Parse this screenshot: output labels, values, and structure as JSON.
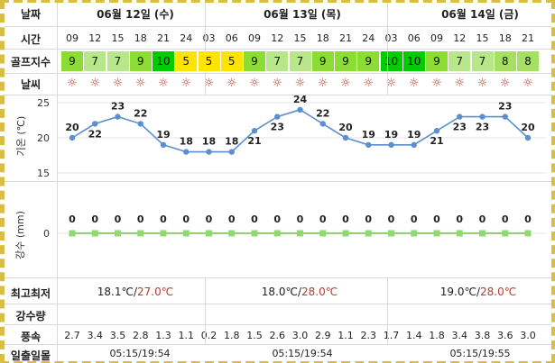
{
  "labels": {
    "date": "날짜",
    "time": "시간",
    "golf": "골프지수",
    "weather": "날씨",
    "temp_axis": "기온 (℃)",
    "rain_axis": "강수 (mm)",
    "minmax": "최고최저",
    "rain_amount": "강수량",
    "wind": "풍속",
    "sun": "일출일몰"
  },
  "days": [
    {
      "title": "06월 12일 (수)",
      "min": "18.1℃",
      "max": "27.0℃",
      "sunrise": "05:15",
      "sunset": "19:54"
    },
    {
      "title": "06월 13일 (목)",
      "min": "18.0℃",
      "max": "28.0℃",
      "sunrise": "05:15",
      "sunset": "19:54"
    },
    {
      "title": "06월 14일 (금)",
      "min": "19.0℃",
      "max": "28.0℃",
      "sunrise": "05:15",
      "sunset": "19:55"
    }
  ],
  "times": [
    "09",
    "12",
    "15",
    "18",
    "21",
    "24",
    "03",
    "06",
    "09",
    "12",
    "15",
    "18",
    "21",
    "24",
    "03",
    "06",
    "09",
    "12",
    "15",
    "18",
    "21"
  ],
  "golf": [
    9,
    7,
    7,
    9,
    10,
    5,
    5,
    5,
    9,
    7,
    7,
    9,
    9,
    9,
    10,
    10,
    9,
    7,
    7,
    8,
    8
  ],
  "weather_icon": "sun-icon",
  "temps": [
    20,
    22,
    23,
    22,
    19,
    18,
    18,
    18,
    21,
    23,
    24,
    22,
    20,
    19,
    19,
    19,
    21,
    23,
    23,
    23,
    20
  ],
  "rain": [
    0,
    0,
    0,
    0,
    0,
    0,
    0,
    0,
    0,
    0,
    0,
    0,
    0,
    0,
    0,
    0,
    0,
    0,
    0,
    0,
    0
  ],
  "wind": [
    "2.7",
    "3.4",
    "3.5",
    "2.8",
    "1.3",
    "1.1",
    "0.2",
    "1.8",
    "1.5",
    "2.6",
    "3.0",
    "2.9",
    "1.1",
    "2.3",
    "1.7",
    "1.4",
    "1.8",
    "3.4",
    "3.8",
    "3.6",
    "3.0"
  ],
  "chart_data": {
    "type": "line",
    "series": [
      {
        "values": [
          20,
          22,
          23,
          22,
          19,
          18,
          18,
          18,
          21,
          23,
          24,
          22,
          20,
          19,
          19,
          19,
          21,
          23,
          23,
          23,
          20
        ]
      }
    ],
    "rain_values": [
      0,
      0,
      0,
      0,
      0,
      0,
      0,
      0,
      0,
      0,
      0,
      0,
      0,
      0,
      0,
      0,
      0,
      0,
      0,
      0,
      0
    ],
    "ylim": [
      15,
      25
    ],
    "yticks": [
      15,
      20,
      25
    ],
    "rain_yticks": [
      0
    ]
  },
  "colors": {
    "line": "#5b8fd1",
    "rain_line": "#6cc04a",
    "rain_marker": "#8fd873",
    "golf_10": "#00cc00",
    "golf_9": "#8cdd33",
    "golf_8": "#a6e063",
    "golf_7": "#b8e68a",
    "golf_5": "#ffe400"
  }
}
